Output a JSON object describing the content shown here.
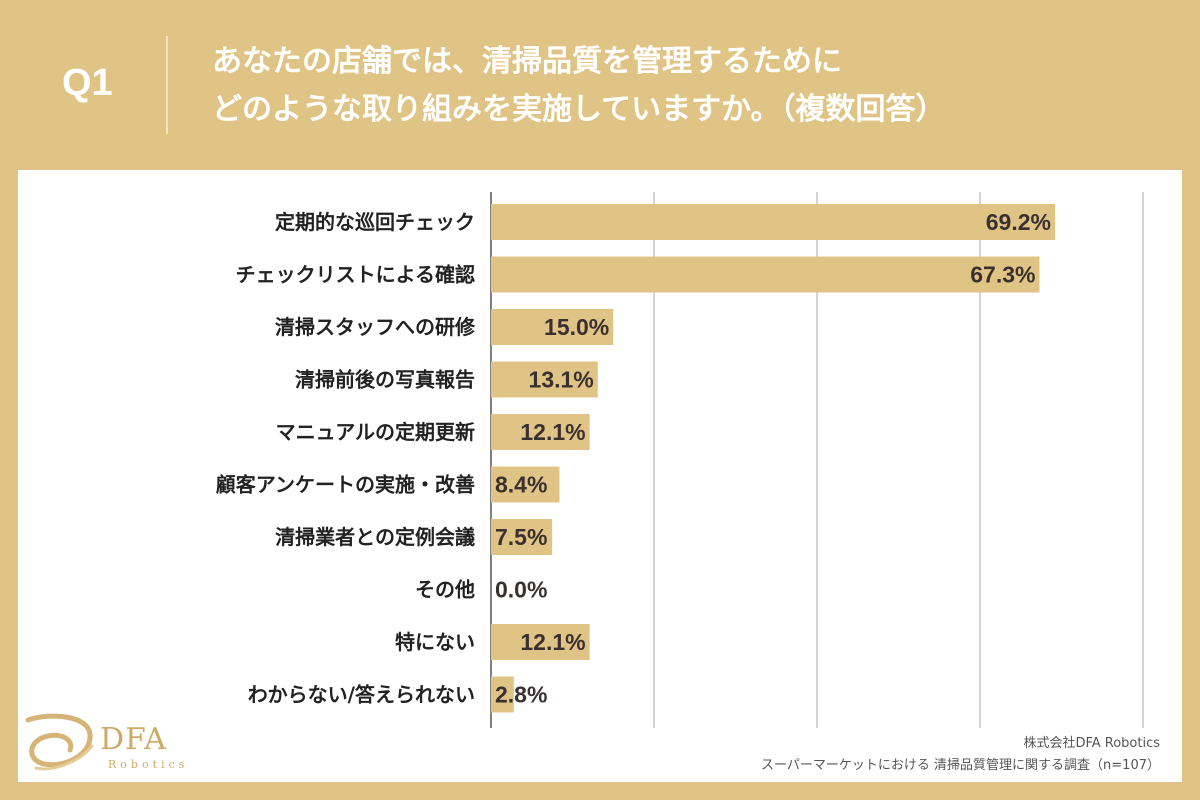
{
  "header": {
    "question_label": "Q1",
    "title_line1": "あなたの店舗では、清掃品質を管理するために",
    "title_line2": "どのような取り組みを実施していますか。（複数回答）"
  },
  "colors": {
    "background": "#E0C485",
    "bar": "#E0C485",
    "card": "#ffffff",
    "grid": "#aaaaaa"
  },
  "chart_data": {
    "type": "bar",
    "orientation": "horizontal",
    "title": "あなたの店舗では、清掃品質を管理するために どのような取り組みを実施していますか。（複数回答）",
    "xlabel": "",
    "ylabel": "",
    "xlim": [
      0,
      80
    ],
    "grid": true,
    "categories": [
      "定期的な巡回チェック",
      "チェックリストによる確認",
      "清掃スタッフへの研修",
      "清掃前後の写真報告",
      "マニュアルの定期更新",
      "顧客アンケートの実施・改善",
      "清掃業者との定例会議",
      "その他",
      "特にない",
      "わからない/答えられない"
    ],
    "values": [
      69.2,
      67.3,
      15.0,
      13.1,
      12.1,
      8.4,
      7.5,
      0.0,
      12.1,
      2.8
    ],
    "value_labels": [
      "69.2%",
      "67.3%",
      "15.0%",
      "13.1%",
      "12.1%",
      "8.4%",
      "7.5%",
      "0.0%",
      "12.1%",
      "2.8%"
    ]
  },
  "logo": {
    "name": "DFA",
    "sub": "Robotics"
  },
  "footer": {
    "company": "株式会社DFA Robotics",
    "survey": "スーパーマーケットにおける 清掃品質管理に関する調査（n=107）"
  }
}
